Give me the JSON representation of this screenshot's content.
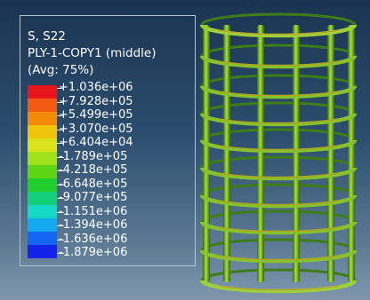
{
  "legend": {
    "title_lines": [
      "S, S22",
      "PLY-1-COPY1 (middle)",
      "(Avg: 75%)"
    ],
    "colors": [
      "#e8151b",
      "#f15a10",
      "#f38a0a",
      "#f1c40a",
      "#d9e21a",
      "#a2e11e",
      "#5fd414",
      "#20cf2b",
      "#14d07b",
      "#15d9c3",
      "#12a9ee",
      "#1465f2",
      "#1222e8"
    ],
    "ticks": [
      "+1.036e+06",
      "+7.928e+05",
      "+5.499e+05",
      "+3.070e+05",
      "+6.404e+04",
      "-1.789e+05",
      "-4.218e+05",
      "-6.648e+05",
      "-9.077e+05",
      "-1.151e+06",
      "-1.394e+06",
      "-1.636e+06",
      "-1.879e+06"
    ]
  }
}
